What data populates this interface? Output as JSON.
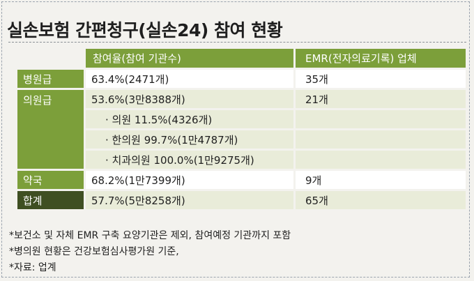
{
  "title": "실손보험 간편청구(실손24) 참여 현황",
  "table": {
    "headers": {
      "rate": "참여율(참여 기관수)",
      "emr": "EMR(전자의료기록) 업체"
    },
    "rows": [
      {
        "label": "병원급",
        "rate": "63.4%(2471개)",
        "emr": "35개"
      },
      {
        "label": "의원급",
        "rate": "53.6%(3만8388개)",
        "emr": "21개"
      },
      {
        "label": "",
        "rate": "· 의원 11.5%(4326개)",
        "emr": ""
      },
      {
        "label": "",
        "rate": "· 한의원 99.7%(1만4787개)",
        "emr": ""
      },
      {
        "label": "",
        "rate": "· 치과의원 100.0%(1만9275개)",
        "emr": ""
      },
      {
        "label": "약국",
        "rate": "68.2%(1만7399개)",
        "emr": "9개"
      },
      {
        "label": "합계",
        "rate": "57.7%(5만8258개)",
        "emr": "65개"
      }
    ]
  },
  "notes": [
    "*보건소 및 자체 EMR 구축 요양기관은 제외, 참여예정 기관까지 포함",
    "*병의원 현황은 건강보험심사평가원 기준,",
    "*자료: 업계"
  ],
  "colors": {
    "header_green": "#7c9f3a",
    "total_dark_green": "#3f4f22",
    "row_light_green": "#e9ecd9"
  }
}
